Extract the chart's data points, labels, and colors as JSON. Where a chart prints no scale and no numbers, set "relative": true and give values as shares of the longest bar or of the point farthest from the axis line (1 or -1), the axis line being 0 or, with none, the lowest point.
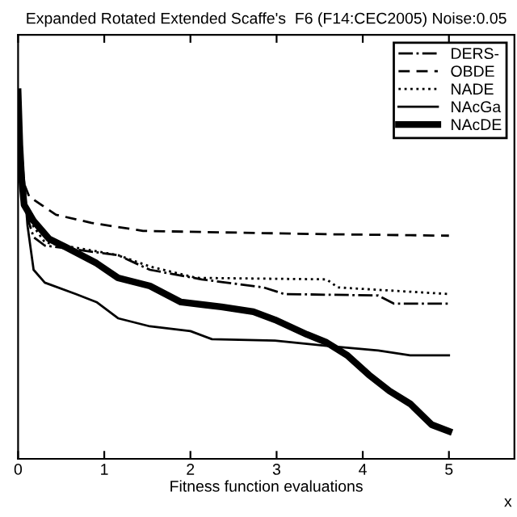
{
  "chart_data": {
    "type": "line",
    "title": "Expanded Rotated Extended Scaffe's  F6 (F14:CEC2005) Noise:0.05",
    "xlabel": "Fitness function evaluations",
    "annotations": [
      "x"
    ],
    "relative": true,
    "xlim": [
      0,
      5.76
    ],
    "xticks": [
      0,
      1,
      2,
      3,
      4,
      5
    ],
    "tick_labels": "x",
    "grid": false,
    "legend": "top right",
    "marker": "none",
    "series": [
      {
        "name": "DERS-",
        "color": "#000000",
        "line_style": "dashdot",
        "x": [
          0,
          0.04,
          0.11,
          0.18,
          0.31,
          1.16,
          1.53,
          2.13,
          2.85,
          3.09,
          4.18,
          4.36,
          5.0
        ],
        "values": [
          0.987,
          0.767,
          0.656,
          0.604,
          0.581,
          0.555,
          0.515,
          0.489,
          0.467,
          0.449,
          0.445,
          0.423,
          0.423
        ]
      },
      {
        "name": "OBDE",
        "color": "#000000",
        "line_style": "dashed",
        "x": [
          0,
          0.04,
          0.13,
          0.44,
          0.85,
          1.45,
          2.36,
          3.58,
          5.0
        ],
        "values": [
          0.987,
          0.767,
          0.714,
          0.665,
          0.643,
          0.621,
          0.617,
          0.612,
          0.608
        ]
      },
      {
        "name": "NADE",
        "color": "#000000",
        "line_style": "dotted",
        "x": [
          0,
          0.04,
          0.11,
          0.31,
          1.16,
          1.53,
          2.07,
          3.58,
          3.71,
          5.0
        ],
        "values": [
          0.987,
          0.767,
          0.656,
          0.59,
          0.555,
          0.524,
          0.493,
          0.489,
          0.467,
          0.449
        ]
      },
      {
        "name": "NAcGa",
        "color": "#000000",
        "line_style": "solid",
        "x": [
          0,
          0.05,
          0.11,
          0.18,
          0.31,
          0.67,
          0.91,
          1.16,
          1.53,
          2.0,
          2.25,
          2.98,
          3.58,
          4.18,
          4.55,
          5.0
        ],
        "values": [
          0.987,
          0.811,
          0.634,
          0.515,
          0.48,
          0.449,
          0.427,
          0.383,
          0.361,
          0.348,
          0.326,
          0.322,
          0.308,
          0.295,
          0.282,
          0.282
        ]
      },
      {
        "name": "NAcDE",
        "color": "#000000",
        "line_style": "solid",
        "x": [
          0,
          0.02,
          0.04,
          0.07,
          0.18,
          0.36,
          0.55,
          0.91,
          1.16,
          1.53,
          1.89,
          2.36,
          2.73,
          2.98,
          3.35,
          3.58,
          3.82,
          4.07,
          4.31,
          4.55,
          4.8,
          5.0
        ],
        "values": [
          1.0,
          0.855,
          0.767,
          0.692,
          0.648,
          0.599,
          0.577,
          0.533,
          0.493,
          0.471,
          0.427,
          0.414,
          0.401,
          0.379,
          0.339,
          0.317,
          0.282,
          0.229,
          0.185,
          0.15,
          0.093,
          0.075
        ]
      }
    ]
  }
}
